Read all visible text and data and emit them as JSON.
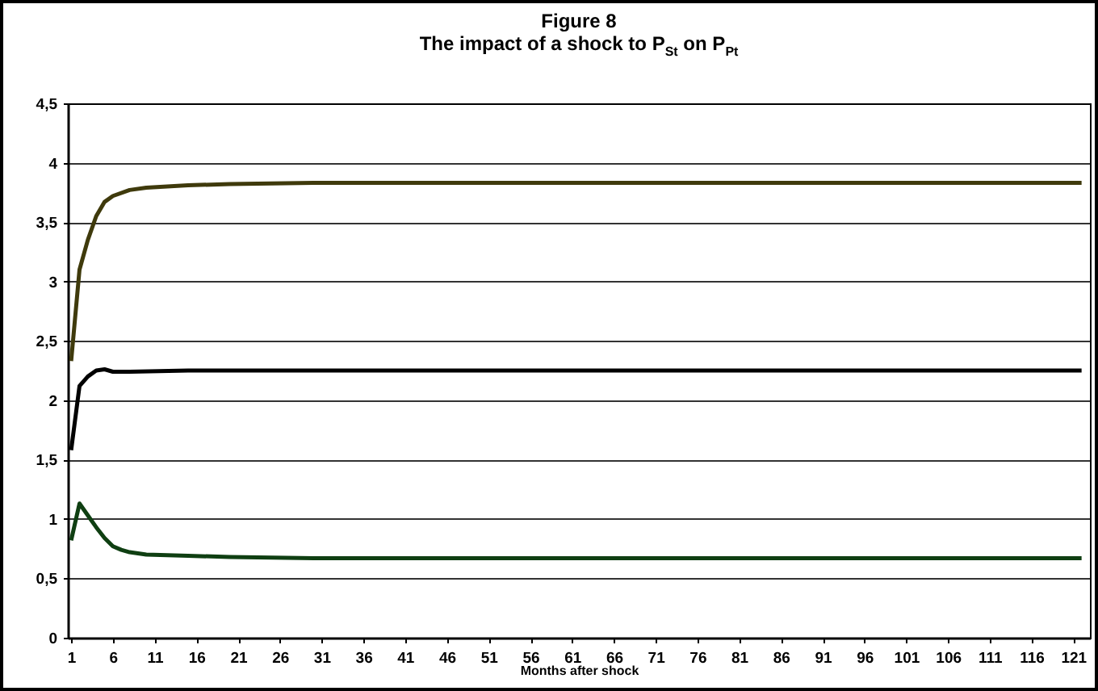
{
  "chart_data": {
    "type": "line",
    "title": "Figure 8",
    "subtitle": "The impact of a shock to P$_{St}$ on P$_{Pt}$",
    "xlabel": "Months after shock",
    "xlim": [
      0.6,
      123
    ],
    "xticks": [
      1,
      6,
      11,
      16,
      21,
      26,
      31,
      36,
      41,
      46,
      51,
      56,
      61,
      66,
      71,
      76,
      81,
      86,
      91,
      96,
      101,
      106,
      111,
      116,
      121
    ],
    "ylim": [
      0,
      4.5
    ],
    "yticks": [
      0,
      {
        "value": 0.5,
        "label": "0,5"
      },
      1,
      {
        "value": 1.5,
        "label": "1,5"
      },
      2,
      {
        "value": 2.5,
        "label": "2,5"
      },
      3,
      {
        "value": 3.5,
        "label": "3,5"
      },
      4,
      {
        "value": 4.5,
        "label": "4,5"
      }
    ],
    "grid": "y",
    "legend": false,
    "line_style": "solid",
    "series": [
      {
        "color": "#3f3a0c",
        "x": [
          1,
          2,
          3,
          4,
          5,
          6,
          8,
          10,
          15,
          20,
          30,
          122
        ],
        "values": [
          2.33,
          3.1,
          3.35,
          3.55,
          3.67,
          3.72,
          3.77,
          3.79,
          3.81,
          3.82,
          3.83,
          3.83
        ]
      },
      {
        "color": "#000000",
        "x": [
          1,
          2,
          3,
          4,
          5,
          6,
          8,
          15,
          122
        ],
        "values": [
          1.58,
          2.12,
          2.2,
          2.25,
          2.26,
          2.24,
          2.24,
          2.25,
          2.25
        ]
      },
      {
        "color": "#0f3f12",
        "x": [
          1,
          2,
          3,
          4,
          5,
          6,
          7,
          8,
          10,
          15,
          20,
          30,
          122
        ],
        "values": [
          0.82,
          1.13,
          1.03,
          0.93,
          0.84,
          0.77,
          0.74,
          0.72,
          0.7,
          0.69,
          0.68,
          0.67,
          0.67
        ]
      }
    ]
  }
}
